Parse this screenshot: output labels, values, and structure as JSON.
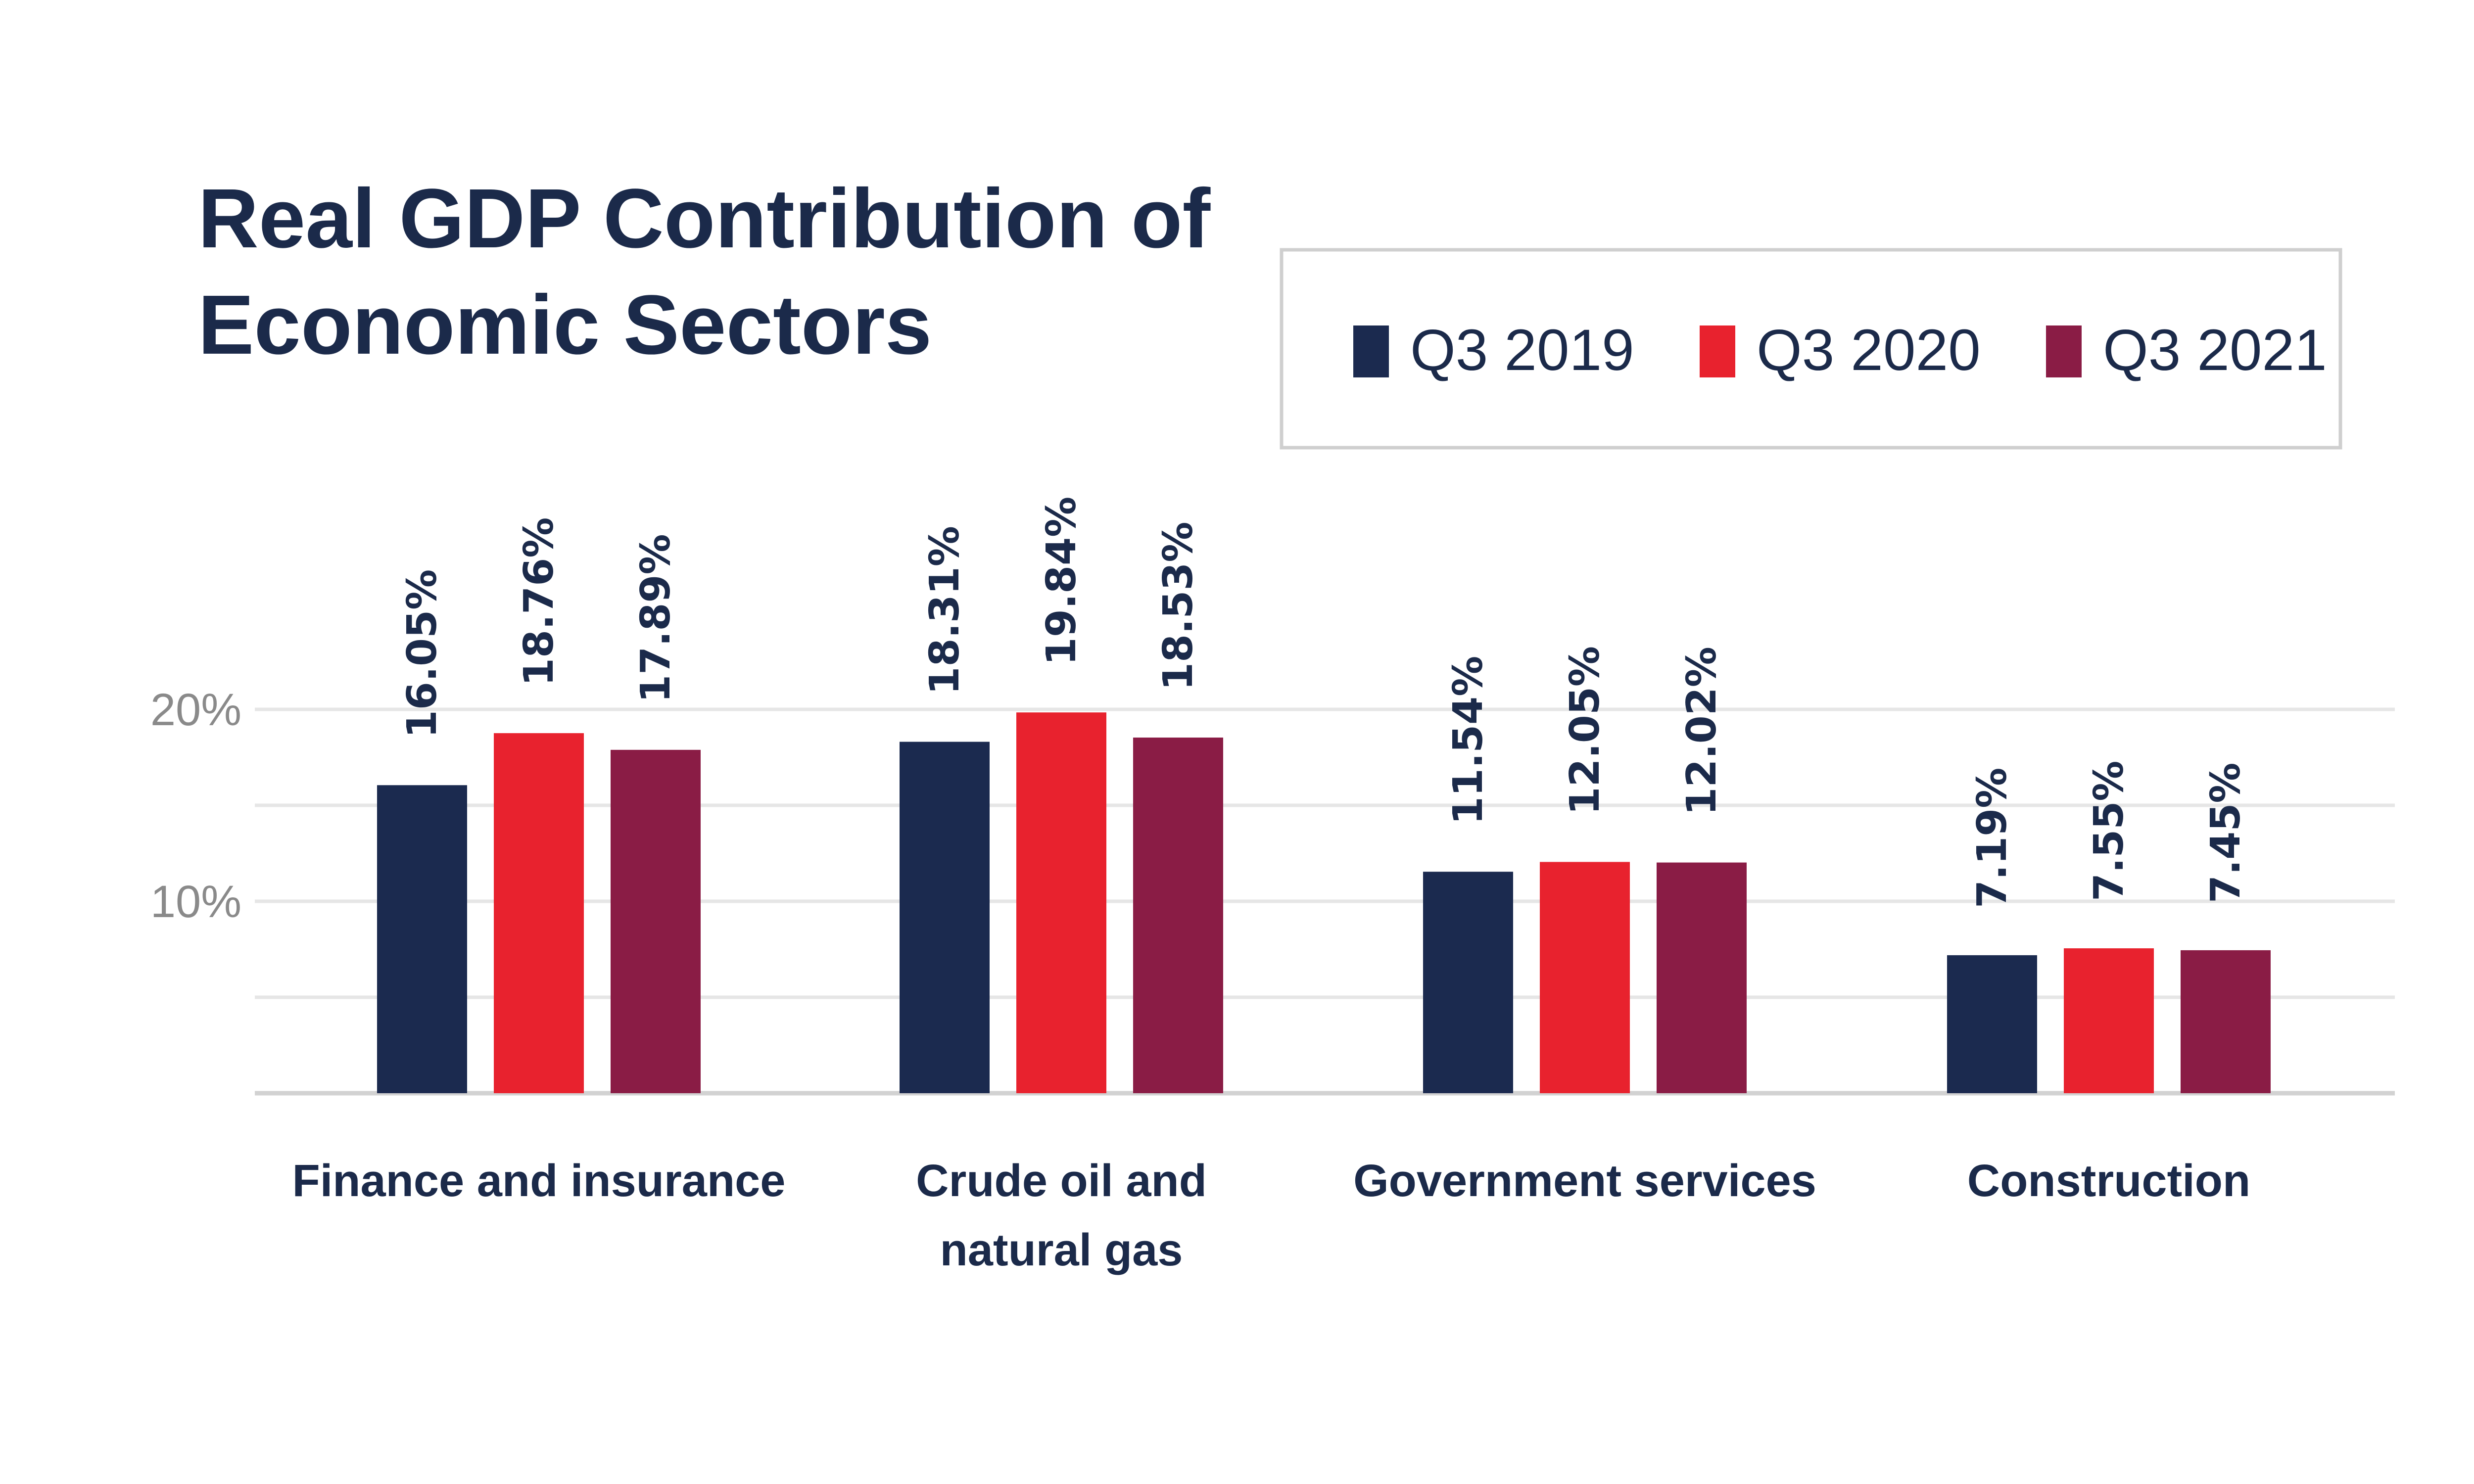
{
  "chart_data": {
    "type": "bar",
    "title": "Real GDP Contribution of Economic Sectors",
    "title_lines": [
      "Real GDP Contribution of",
      "Economic Sectors"
    ],
    "categories": [
      "Finance and insurance",
      "Crude oil and natural gas",
      "Government services",
      "Construction"
    ],
    "category_lines": [
      [
        "Finance and insurance"
      ],
      [
        "Crude oil and",
        "natural gas"
      ],
      [
        "Government services"
      ],
      [
        "Construction"
      ]
    ],
    "series": [
      {
        "name": "Q3 2019",
        "color": "#1b2a4f",
        "values": [
          16.05,
          18.31,
          11.54,
          7.19
        ]
      },
      {
        "name": "Q3 2020",
        "color": "#e8222e",
        "values": [
          18.76,
          19.84,
          12.05,
          7.55
        ]
      },
      {
        "name": "Q3 2021",
        "color": "#8a1c45",
        "values": [
          17.89,
          18.53,
          12.02,
          7.45
        ]
      }
    ],
    "data_labels": [
      [
        "16.05%",
        "18.31%",
        "11.54%",
        "7.19%"
      ],
      [
        "18.76%",
        "19.84%",
        "12.05%",
        "7.55%"
      ],
      [
        "17.89%",
        "18.53%",
        "12.02%",
        "7.45%"
      ]
    ],
    "y_ticks": [
      {
        "value": 10,
        "label": "10%"
      },
      {
        "value": 20,
        "label": "20%"
      }
    ],
    "ylim": [
      0,
      20
    ],
    "xlabel": "",
    "ylabel": "",
    "grid": true,
    "legend_position": "top-right"
  }
}
